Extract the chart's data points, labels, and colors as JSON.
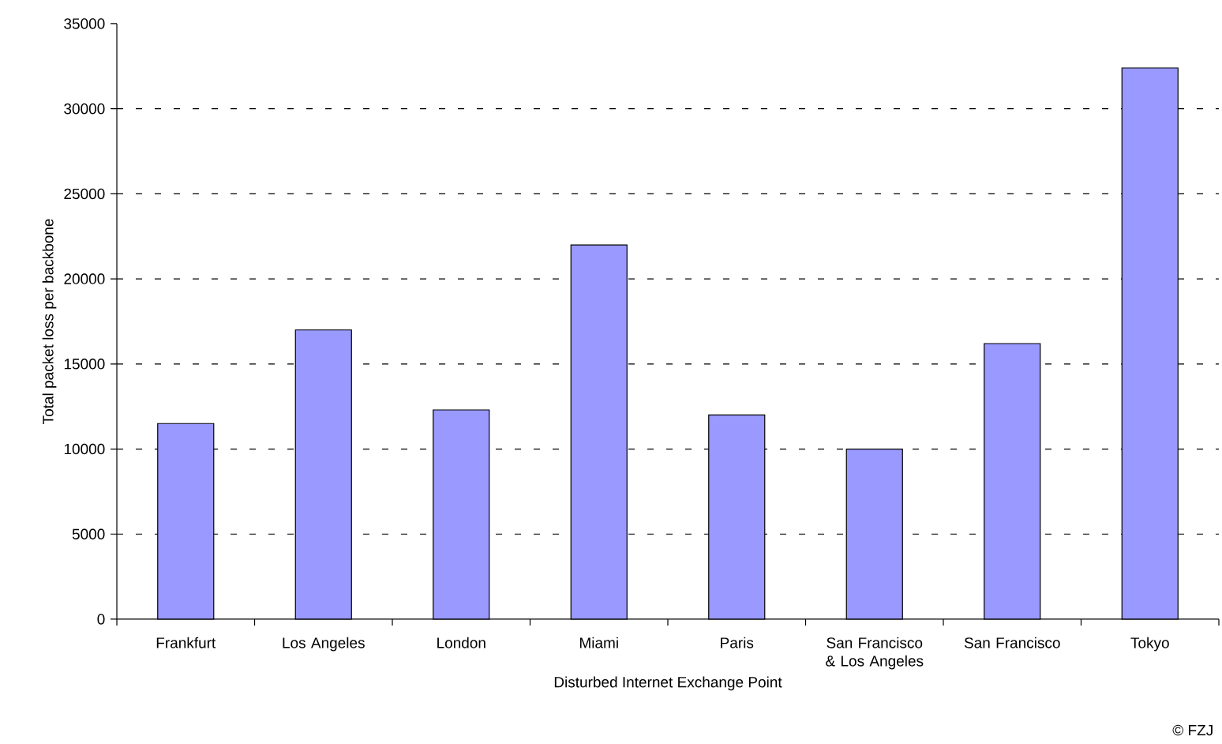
{
  "chart_data": {
    "type": "bar",
    "xlabel": "Disturbed Internet Exchange Point",
    "ylabel": "Total packet loss per backbone",
    "categories": [
      "Frankfurt",
      "Los Angeles",
      "London",
      "Miami",
      "Paris",
      "San Francisco & Los Angeles",
      "San Francisco",
      "Tokyo"
    ],
    "values": [
      11500,
      17000,
      12300,
      22000,
      12000,
      10000,
      16200,
      32400
    ],
    "color": "#9999ff",
    "ylim": [
      0,
      35000
    ],
    "yticks": [
      0,
      5000,
      10000,
      15000,
      20000,
      25000,
      30000,
      35000
    ],
    "grid": "y",
    "annotations": [
      "© FZJ"
    ]
  }
}
